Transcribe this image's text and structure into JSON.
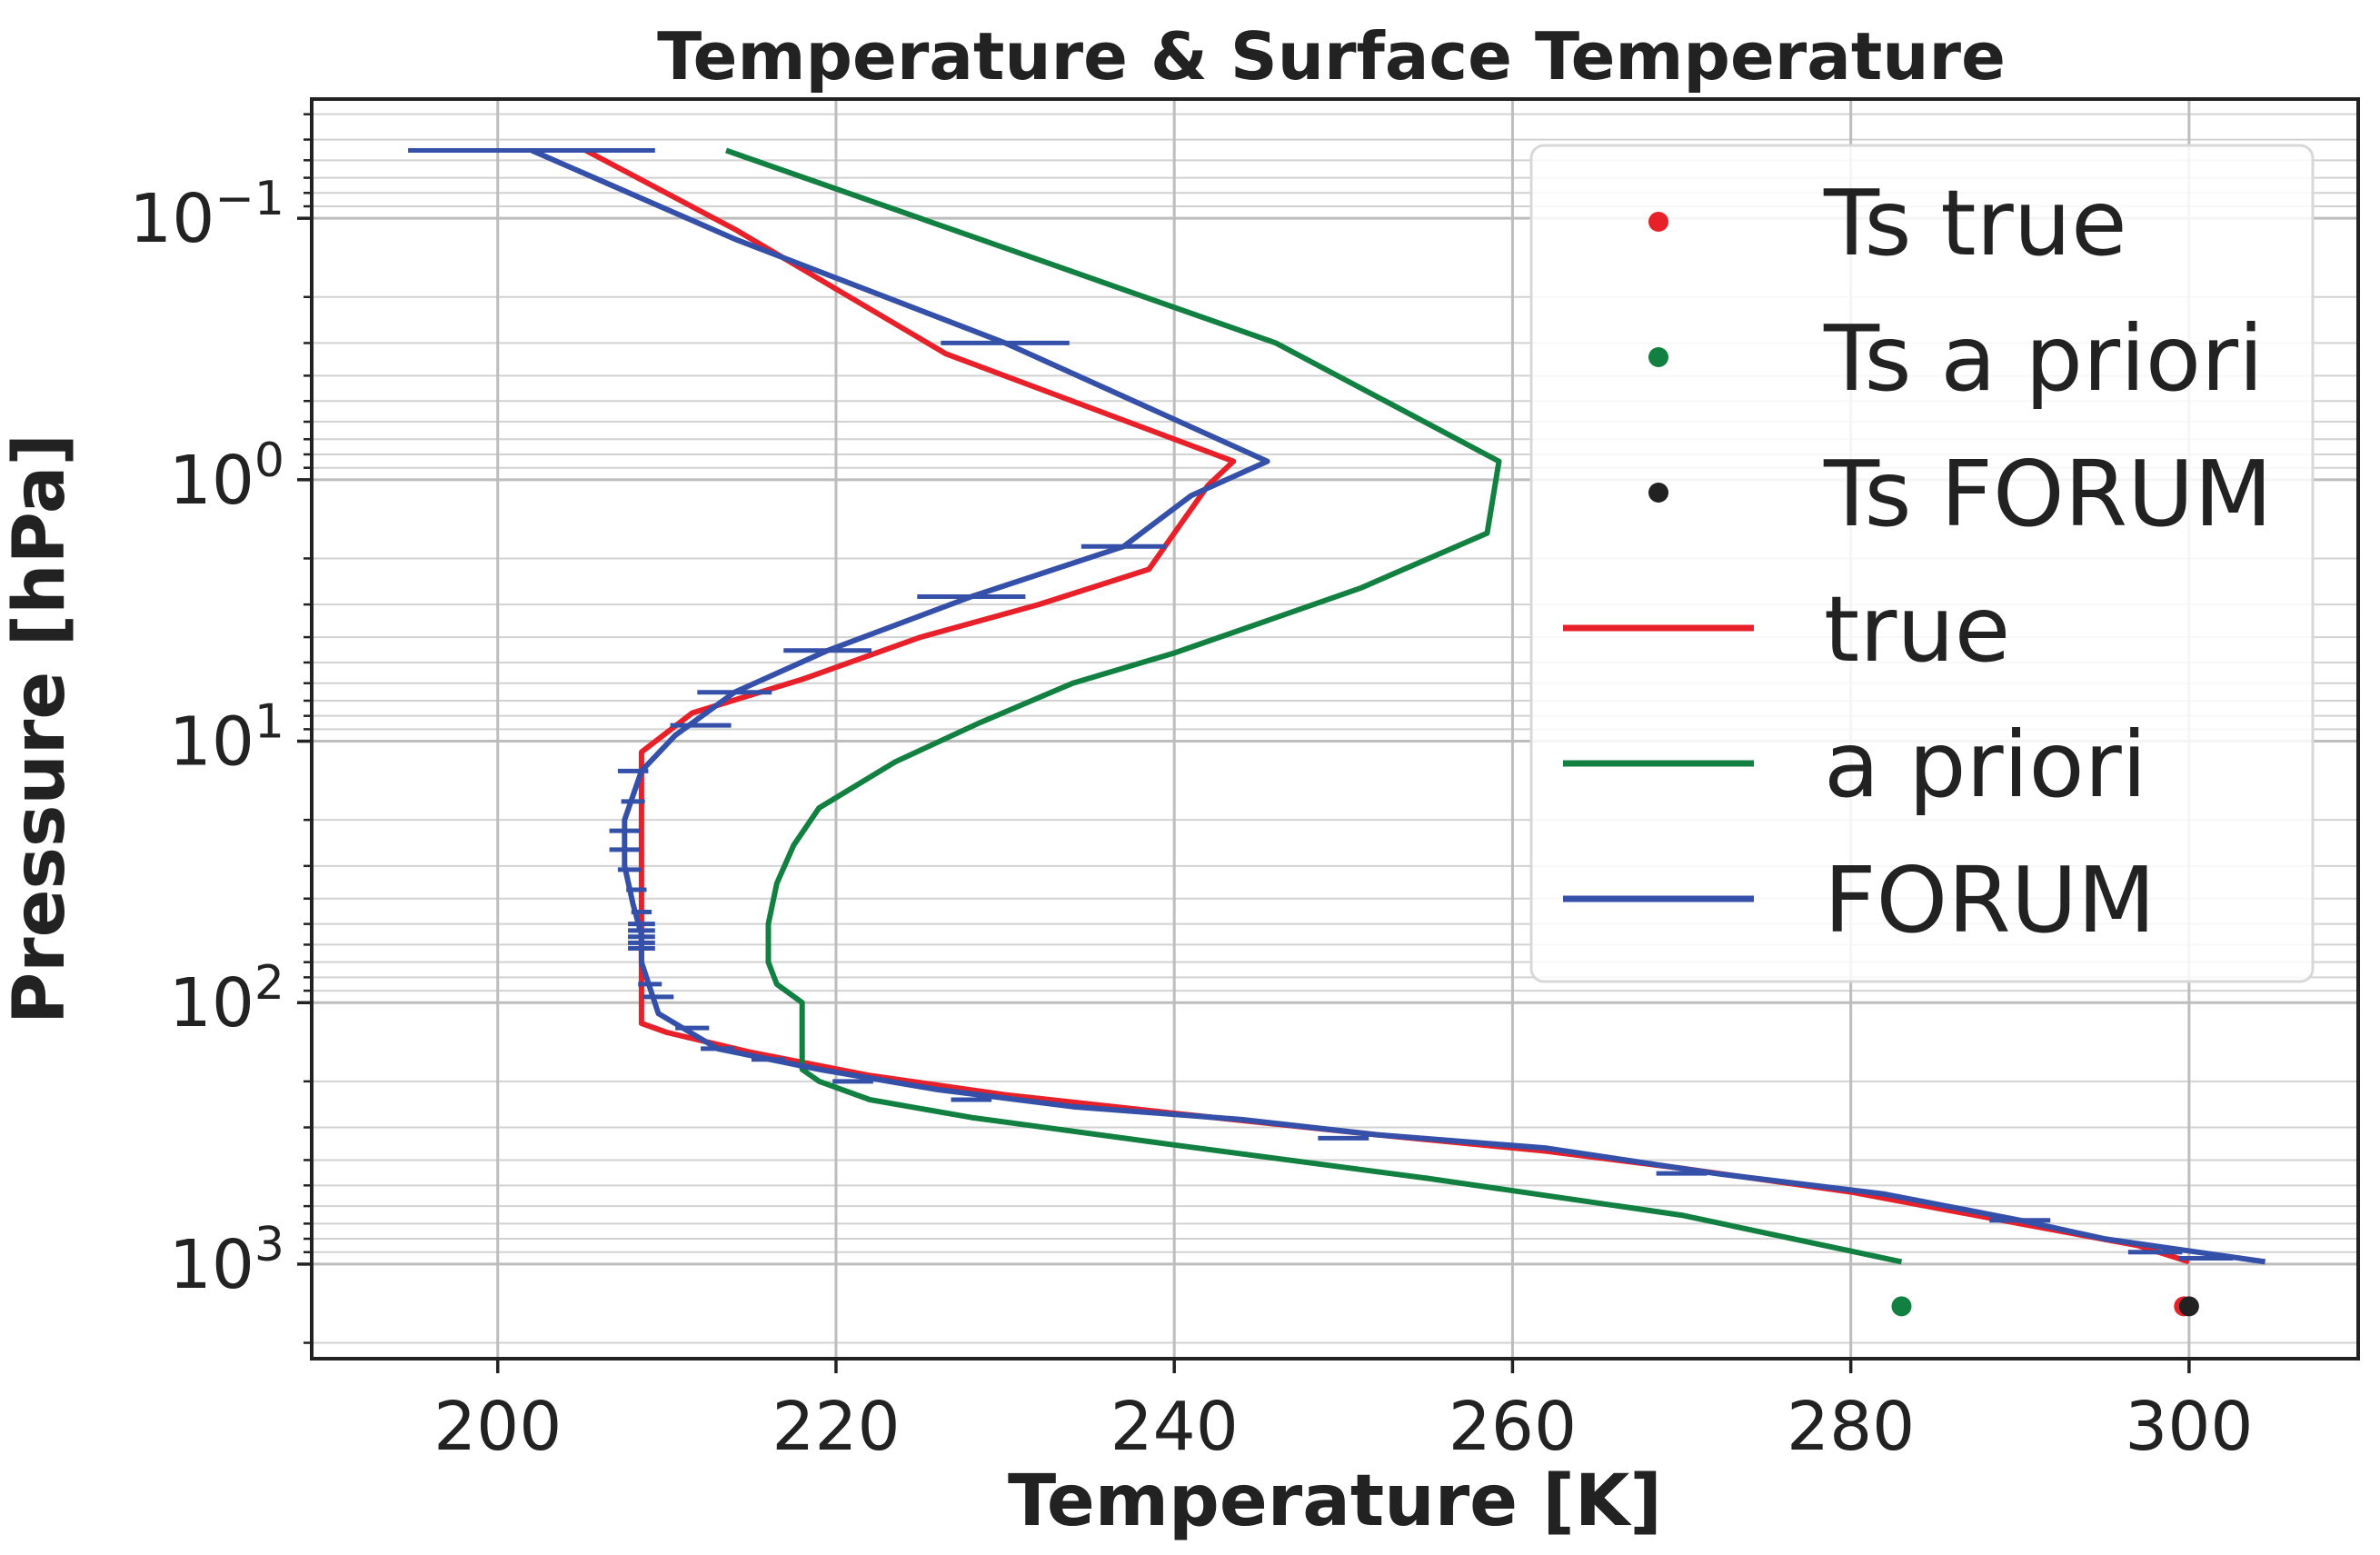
{
  "chart_data": {
    "type": "line",
    "title": "Temperature & Surface Temperature",
    "xlabel": "Temperature [K]",
    "ylabel": "Pressure [hPa]",
    "xlim": [
      189,
      310
    ],
    "ylim": [
      2300,
      0.035
    ],
    "yscale": "log",
    "grid": true,
    "legend_position": "top-right",
    "x_ticks": [
      200,
      220,
      240,
      260,
      280,
      300
    ],
    "y_ticks": [
      {
        "value": 0.1,
        "base": "10",
        "exp": "−1"
      },
      {
        "value": 1,
        "base": "10",
        "exp": "0"
      },
      {
        "value": 10,
        "base": "10",
        "exp": "1"
      },
      {
        "value": 100,
        "base": "10",
        "exp": "2"
      },
      {
        "value": 1000,
        "base": "10",
        "exp": "3"
      }
    ],
    "series": [
      {
        "name": "true",
        "kind": "line",
        "color": "#e8202a",
        "points": [
          [
            205.2,
            0.055
          ],
          [
            214,
            0.11
          ],
          [
            226.5,
            0.33
          ],
          [
            243.5,
            0.85
          ],
          [
            242,
            1.05
          ],
          [
            240,
            1.6
          ],
          [
            238.5,
            2.2
          ],
          [
            232,
            3.0
          ],
          [
            225,
            4.0
          ],
          [
            218,
            5.8
          ],
          [
            211.5,
            7.8
          ],
          [
            208.5,
            11
          ],
          [
            208.5,
            15
          ],
          [
            208.5,
            25
          ],
          [
            208.5,
            40
          ],
          [
            208.5,
            60
          ],
          [
            208.5,
            80
          ],
          [
            208.5,
            100
          ],
          [
            208.5,
            120
          ],
          [
            210,
            130
          ],
          [
            215,
            155
          ],
          [
            222,
            190
          ],
          [
            230,
            225
          ],
          [
            240,
            265
          ],
          [
            252,
            320
          ],
          [
            262,
            370
          ],
          [
            270,
            430
          ],
          [
            280,
            530
          ],
          [
            290,
            700
          ],
          [
            297,
            850
          ],
          [
            300,
            980
          ]
        ]
      },
      {
        "name": "a priori",
        "kind": "line",
        "color": "#128040",
        "points": [
          [
            213.5,
            0.055
          ],
          [
            230,
            0.13
          ],
          [
            246,
            0.3
          ],
          [
            259.2,
            0.85
          ],
          [
            258.5,
            1.6
          ],
          [
            251,
            2.6
          ],
          [
            240,
            4.6
          ],
          [
            234,
            6.0
          ],
          [
            228.5,
            8.5
          ],
          [
            223.5,
            12
          ],
          [
            219,
            18
          ],
          [
            217.5,
            25
          ],
          [
            216.5,
            35
          ],
          [
            216,
            50
          ],
          [
            216,
            70
          ],
          [
            216.5,
            85
          ],
          [
            218,
            100
          ],
          [
            218,
            140
          ],
          [
            218,
            180
          ],
          [
            219,
            200
          ],
          [
            222,
            235
          ],
          [
            228,
            275
          ],
          [
            240,
            350
          ],
          [
            255,
            470
          ],
          [
            270,
            650
          ],
          [
            283,
            980
          ]
        ]
      },
      {
        "name": "FORUM",
        "kind": "line",
        "color": "#3550a8",
        "points": [
          [
            202,
            0.055
          ],
          [
            214,
            0.12
          ],
          [
            230,
            0.3
          ],
          [
            245.5,
            0.85
          ],
          [
            241,
            1.15
          ],
          [
            237,
            1.8
          ],
          [
            228,
            2.8
          ],
          [
            219.5,
            4.5
          ],
          [
            214,
            6.5
          ],
          [
            210.5,
            9.5
          ],
          [
            208.5,
            13
          ],
          [
            207.5,
            20
          ],
          [
            207.5,
            30
          ],
          [
            208,
            42
          ],
          [
            208.5,
            55
          ],
          [
            208.5,
            70
          ],
          [
            209.5,
            110
          ],
          [
            213,
            150
          ],
          [
            219,
            180
          ],
          [
            226,
            215
          ],
          [
            234,
            250
          ],
          [
            244,
            280
          ],
          [
            252,
            320
          ],
          [
            262,
            360
          ],
          [
            272,
            450
          ],
          [
            282,
            540
          ],
          [
            290,
            680
          ],
          [
            295,
            800
          ],
          [
            304.5,
            980
          ]
        ]
      },
      {
        "name": "Ts true",
        "kind": "point",
        "color": "#e8202a",
        "points": [
          [
            299.7,
            1450
          ]
        ]
      },
      {
        "name": "Ts a priori",
        "kind": "point",
        "color": "#128040",
        "points": [
          [
            283,
            1450
          ]
        ]
      },
      {
        "name": "Ts FORUM",
        "kind": "point",
        "color": "#222222",
        "points": [
          [
            300,
            1450
          ]
        ]
      }
    ],
    "forum_error_bars": [
      [
        202,
        0.055,
        7.3
      ],
      [
        230,
        0.3,
        3.8
      ],
      [
        237,
        1.8,
        2.5
      ],
      [
        228,
        2.8,
        3.2
      ],
      [
        219.5,
        4.5,
        2.6
      ],
      [
        214,
        6.5,
        2.2
      ],
      [
        212,
        8.7,
        1.8
      ],
      [
        208,
        13,
        0.9
      ],
      [
        208,
        17,
        0.7
      ],
      [
        207.5,
        22,
        0.9
      ],
      [
        207.5,
        26,
        0.9
      ],
      [
        207.8,
        31,
        0.7
      ],
      [
        208.2,
        37,
        0.6
      ],
      [
        208.5,
        45,
        0.6
      ],
      [
        208.5,
        50,
        0.8
      ],
      [
        208.5,
        53,
        0.8
      ],
      [
        208.5,
        56,
        0.8
      ],
      [
        208.5,
        59,
        0.8
      ],
      [
        208.5,
        62,
        0.8
      ],
      [
        209,
        85,
        0.7
      ],
      [
        209.5,
        95,
        0.9
      ],
      [
        211.5,
        125,
        1.0
      ],
      [
        213,
        150,
        1.0
      ],
      [
        216,
        165,
        1.0
      ],
      [
        221,
        200,
        1.2
      ],
      [
        228,
        235,
        1.2
      ],
      [
        250,
        330,
        1.5
      ],
      [
        270,
        450,
        1.5
      ],
      [
        290,
        680,
        1.8
      ],
      [
        298,
        900,
        1.6
      ],
      [
        301,
        950,
        1.6
      ]
    ]
  }
}
